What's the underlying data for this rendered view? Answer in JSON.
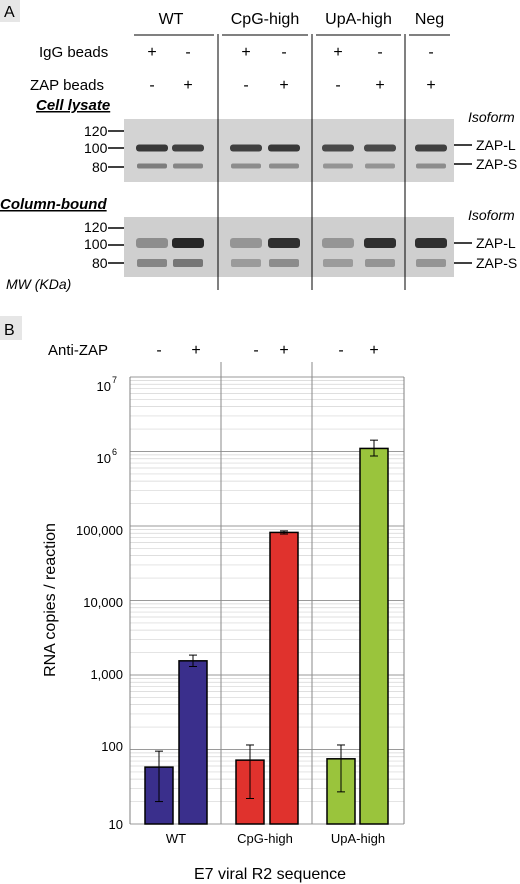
{
  "panel_a": {
    "letter": "A",
    "groups": [
      "WT",
      "CpG-high",
      "UpA-high",
      "Neg"
    ],
    "row_labels": {
      "igg": "IgG beads",
      "zap": "ZAP beads"
    },
    "igg_signs": [
      "+",
      "-",
      "+",
      "-",
      "+",
      "-",
      "-"
    ],
    "zap_signs": [
      "-",
      "+",
      "-",
      "+",
      "-",
      "+",
      "+"
    ],
    "blot1": {
      "title": "Cell lysate",
      "isoform_label": "Isoform",
      "mw_ticks": [
        "120",
        "100",
        "80"
      ],
      "bands": [
        "ZAP-L",
        "ZAP-S"
      ],
      "zapL_intensity": [
        0.85,
        0.8,
        0.8,
        0.85,
        0.75,
        0.75,
        0.8
      ],
      "zapS_intensity": [
        0.5,
        0.45,
        0.4,
        0.4,
        0.35,
        0.35,
        0.4
      ]
    },
    "blot2": {
      "title": "Column-bound",
      "isoform_label": "Isoform",
      "mw_ticks": [
        "120",
        "100",
        "80"
      ],
      "bands": [
        "ZAP-L",
        "ZAP-S"
      ],
      "zapL_intensity": [
        0.35,
        0.95,
        0.3,
        0.9,
        0.3,
        0.9,
        0.9
      ],
      "zapS_intensity": [
        0.45,
        0.55,
        0.3,
        0.4,
        0.3,
        0.35,
        0.35
      ]
    },
    "mw_label": "MW (KDa)"
  },
  "panel_b": {
    "letter": "B",
    "treatment_label": "Anti-ZAP",
    "signs": [
      "-",
      "+",
      "-",
      "+",
      "-",
      "+"
    ],
    "y_ticks": [
      "10",
      "100",
      "1,000",
      "10,000",
      "100,000"
    ],
    "y_tick_1e6": {
      "base": "10",
      "exp": "6"
    },
    "y_tick_1e7": {
      "base": "10",
      "exp": "7"
    }
  },
  "chart_data": {
    "type": "bar",
    "categories": [
      "WT",
      "CpG-high",
      "UpA-high"
    ],
    "ylabel": "RNA copies / reaction",
    "xlabel": "E7 viral R2 sequence",
    "yscale": "log",
    "ylim": [
      10,
      10000000
    ],
    "grid": true,
    "series": [
      {
        "name": "-",
        "values": [
          58,
          72,
          75
        ],
        "err_low": [
          20,
          22,
          27
        ],
        "err_high": [
          95,
          115,
          115
        ]
      },
      {
        "name": "+",
        "values": [
          1550,
          82000,
          1100000
        ],
        "err_low": [
          1300,
          78000,
          870000
        ],
        "err_high": [
          1850,
          86000,
          1420000
        ]
      }
    ],
    "colors": {
      "WT": "#3a2f8c",
      "CpG-high": "#e0322d",
      "UpA-high": "#9ac43c"
    }
  }
}
